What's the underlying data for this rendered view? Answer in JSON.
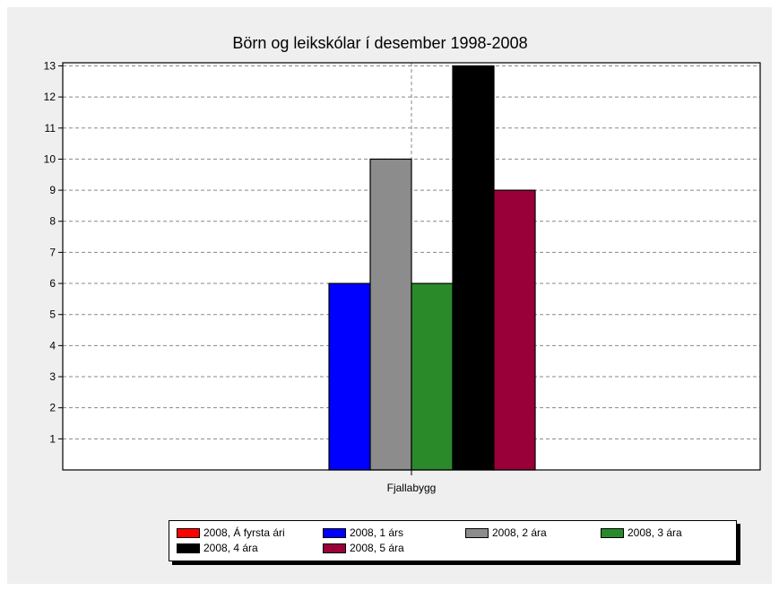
{
  "chart_data": {
    "type": "bar",
    "title": "Börn og leikskólar í desember 1998-2008",
    "categories": [
      "Fjallabygg"
    ],
    "ylim": [
      0,
      13
    ],
    "yticks": [
      1,
      2,
      3,
      4,
      5,
      6,
      7,
      8,
      9,
      10,
      11,
      12,
      13
    ],
    "grid": true,
    "legend_position": "bottom",
    "series": [
      {
        "name": "2008, Á fyrsta ári",
        "color": "#ff0000",
        "values": [
          0
        ]
      },
      {
        "name": "2008, 1 árs",
        "color": "#0000ff",
        "values": [
          6
        ]
      },
      {
        "name": "2008, 2 ára",
        "color": "#8c8c8c",
        "values": [
          10
        ]
      },
      {
        "name": "2008, 3 ára",
        "color": "#2a8a2a",
        "values": [
          6
        ]
      },
      {
        "name": "2008, 4 ára",
        "color": "#000000",
        "values": [
          13
        ]
      },
      {
        "name": "2008, 5 ára",
        "color": "#99003a",
        "values": [
          9
        ]
      }
    ]
  }
}
